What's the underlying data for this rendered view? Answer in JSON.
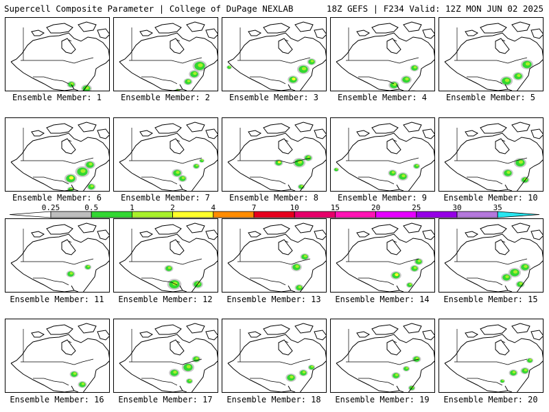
{
  "header": {
    "title": "Supercell Composite Parameter | College of DuPage NEXLAB",
    "run_info": "18Z GEFS | F234 Valid: 12Z MON JUN 02 2025"
  },
  "members": [
    {
      "label": "Ensemble Member: 1",
      "blobs": [
        [
          96,
          97,
          5
        ],
        [
          118,
          103,
          6
        ],
        [
          130,
          115,
          4
        ],
        [
          22,
          115,
          4
        ]
      ]
    },
    {
      "label": "Ensemble Member: 2",
      "blobs": [
        [
          125,
          70,
          8
        ],
        [
          117,
          82,
          6
        ],
        [
          108,
          93,
          5
        ],
        [
          93,
          106,
          3
        ]
      ]
    },
    {
      "label": "Ensemble Member: 3",
      "blobs": [
        [
          103,
          90,
          6
        ],
        [
          118,
          75,
          7
        ],
        [
          130,
          64,
          5
        ],
        [
          10,
          72,
          3
        ]
      ]
    },
    {
      "label": "Ensemble Member: 4",
      "blobs": [
        [
          92,
          98,
          6
        ],
        [
          110,
          90,
          6
        ],
        [
          122,
          73,
          5
        ],
        [
          120,
          110,
          5
        ]
      ]
    },
    {
      "label": "Ensemble Member: 5",
      "blobs": [
        [
          98,
          92,
          7
        ],
        [
          115,
          85,
          6
        ],
        [
          128,
          68,
          7
        ],
        [
          124,
          112,
          5
        ],
        [
          107,
          112,
          4
        ]
      ]
    },
    {
      "label": "Ensemble Member: 6",
      "blobs": [
        [
          95,
          88,
          7
        ],
        [
          112,
          78,
          8
        ],
        [
          123,
          68,
          6
        ],
        [
          125,
          100,
          5
        ],
        [
          95,
          104,
          4
        ]
      ]
    },
    {
      "label": "Ensemble Member: 7",
      "blobs": [
        [
          92,
          80,
          6
        ],
        [
          100,
          88,
          5
        ],
        [
          120,
          70,
          4
        ],
        [
          128,
          62,
          3
        ]
      ]
    },
    {
      "label": "Ensemble Member: 8",
      "blobs": [
        [
          82,
          65,
          5
        ],
        [
          112,
          65,
          7
        ],
        [
          125,
          58,
          5
        ],
        [
          115,
          100,
          4
        ]
      ]
    },
    {
      "label": "Ensemble Member: 9",
      "blobs": [
        [
          90,
          80,
          5
        ],
        [
          105,
          85,
          6
        ],
        [
          125,
          70,
          4
        ],
        [
          8,
          75,
          3
        ]
      ]
    },
    {
      "label": "Ensemble Member: 10",
      "blobs": [
        [
          100,
          80,
          6
        ],
        [
          118,
          65,
          7
        ],
        [
          125,
          90,
          5
        ]
      ]
    },
    {
      "label": "Ensemble Member: 11",
      "blobs": [
        [
          95,
          80,
          5
        ],
        [
          120,
          70,
          4
        ]
      ]
    },
    {
      "label": "Ensemble Member: 12",
      "blobs": [
        [
          88,
          95,
          8
        ],
        [
          80,
          72,
          5
        ],
        [
          122,
          95,
          6
        ]
      ]
    },
    {
      "label": "Ensemble Member: 13",
      "blobs": [
        [
          108,
          70,
          6
        ],
        [
          120,
          55,
          5
        ],
        [
          112,
          100,
          5
        ]
      ]
    },
    {
      "label": "Ensemble Member: 14",
      "blobs": [
        [
          95,
          82,
          6
        ],
        [
          122,
          72,
          5
        ],
        [
          128,
          62,
          5
        ],
        [
          115,
          96,
          4
        ]
      ]
    },
    {
      "label": "Ensemble Member: 15",
      "blobs": [
        [
          98,
          85,
          6
        ],
        [
          110,
          78,
          7
        ],
        [
          125,
          70,
          6
        ],
        [
          118,
          95,
          5
        ]
      ]
    },
    {
      "label": "Ensemble Member: 16",
      "blobs": [
        [
          100,
          80,
          5
        ],
        [
          112,
          95,
          5
        ]
      ]
    },
    {
      "label": "Ensemble Member: 17",
      "blobs": [
        [
          88,
          78,
          6
        ],
        [
          108,
          70,
          7
        ],
        [
          120,
          58,
          5
        ],
        [
          110,
          90,
          4
        ]
      ]
    },
    {
      "label": "Ensemble Member: 18",
      "blobs": [
        [
          100,
          85,
          6
        ],
        [
          118,
          78,
          5
        ],
        [
          130,
          70,
          4
        ]
      ]
    },
    {
      "label": "Ensemble Member: 19",
      "blobs": [
        [
          95,
          82,
          5
        ],
        [
          110,
          72,
          4
        ],
        [
          125,
          58,
          5
        ],
        [
          118,
          100,
          4
        ]
      ]
    },
    {
      "label": "Ensemble Member: 20",
      "blobs": [
        [
          108,
          78,
          5
        ],
        [
          125,
          75,
          5
        ],
        [
          132,
          60,
          4
        ],
        [
          92,
          90,
          3
        ]
      ]
    }
  ],
  "colorbar": {
    "ticks": [
      "0.25",
      "0.5",
      "1",
      "2",
      "4",
      "7",
      "10",
      "15",
      "20",
      "25",
      "30",
      "35"
    ],
    "colors": [
      "#bdbdbd",
      "#32d732",
      "#a8f02a",
      "#ffff2a",
      "#ff8c00",
      "#e6001e",
      "#e6006a",
      "#ff14b4",
      "#e600ff",
      "#9600e6",
      "#b478dc",
      "#28e6f0"
    ]
  }
}
